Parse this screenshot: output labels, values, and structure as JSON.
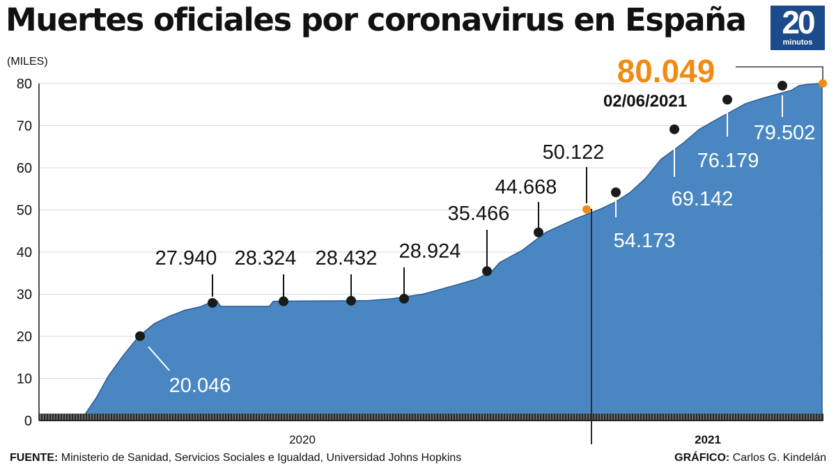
{
  "header": {
    "title": "Muertes oficiales por coronavirus en España",
    "logo_number": "20",
    "logo_text": "minutos"
  },
  "footer": {
    "source_label": "FUENTE:",
    "source_text": "Ministerio de Sanidad, Servicios Sociales e Igualdad, Universidad Johns Hopkins",
    "credit_label": "GRÁFICO:",
    "credit_text": "Carlos G. Kindelán"
  },
  "colors": {
    "area": "#4a87c2",
    "area_edge": "#2a5a92",
    "highlight": "#f08c13",
    "marker": "#1a1a1a",
    "logo_bg": "#1c4b8c"
  },
  "chart_data": {
    "type": "area",
    "ylabel": "(MILES)",
    "ylim": [
      0,
      80
    ],
    "yticks": [
      0,
      10,
      20,
      30,
      40,
      50,
      60,
      70,
      80
    ],
    "x_labels": [
      "2020",
      "2021"
    ],
    "grid": true,
    "series": [
      {
        "values": [
          [
            0.0,
            0
          ],
          [
            0.04,
            0.05
          ],
          [
            0.06,
            1.5
          ],
          [
            0.075,
            5.5
          ],
          [
            0.09,
            10.5
          ],
          [
            0.11,
            15.5
          ],
          [
            0.13,
            20.0
          ],
          [
            0.15,
            23.0
          ],
          [
            0.17,
            24.8
          ],
          [
            0.19,
            26.2
          ],
          [
            0.21,
            27.0
          ],
          [
            0.222,
            27.94
          ],
          [
            0.232,
            28.4
          ],
          [
            0.236,
            27.2
          ],
          [
            0.24,
            27.1
          ],
          [
            0.3,
            27.1
          ],
          [
            0.305,
            28.3
          ],
          [
            0.31,
            28.324
          ],
          [
            0.35,
            28.4
          ],
          [
            0.39,
            28.432
          ],
          [
            0.43,
            28.5
          ],
          [
            0.46,
            28.924
          ],
          [
            0.5,
            30.0
          ],
          [
            0.54,
            32.0
          ],
          [
            0.57,
            33.6
          ],
          [
            0.59,
            35.466
          ],
          [
            0.6,
            37.5
          ],
          [
            0.63,
            40.5
          ],
          [
            0.66,
            44.668
          ],
          [
            0.7,
            48.0
          ],
          [
            0.73,
            50.122
          ],
          [
            0.75,
            51.8
          ],
          [
            0.77,
            54.173
          ],
          [
            0.79,
            57.5
          ],
          [
            0.81,
            62.0
          ],
          [
            0.84,
            66.0
          ],
          [
            0.86,
            69.142
          ],
          [
            0.88,
            71.2
          ],
          [
            0.9,
            73.2
          ],
          [
            0.92,
            75.2
          ],
          [
            0.94,
            76.4
          ],
          [
            0.96,
            77.4
          ],
          [
            0.98,
            78.4
          ],
          [
            0.99,
            79.502
          ],
          [
            1.0,
            79.8
          ],
          [
            1.02,
            80.049
          ]
        ]
      }
    ],
    "annotations": [
      {
        "label": "20.046",
        "value": 20.046
      },
      {
        "label": "27.940",
        "value": 27.94
      },
      {
        "label": "28.324",
        "value": 28.324
      },
      {
        "label": "28.432",
        "value": 28.432
      },
      {
        "label": "28.924",
        "value": 28.924
      },
      {
        "label": "35.466",
        "value": 35.466
      },
      {
        "label": "44.668",
        "value": 44.668
      },
      {
        "label": "50.122",
        "value": 50.122
      },
      {
        "label": "54.173",
        "value": 54.173
      },
      {
        "label": "69.142",
        "value": 69.142
      },
      {
        "label": "76.179",
        "value": 76.179
      },
      {
        "label": "79.502",
        "value": 79.502
      },
      {
        "label": "80.049",
        "value": 80.049
      }
    ],
    "divider_date": "02/06/2021"
  }
}
